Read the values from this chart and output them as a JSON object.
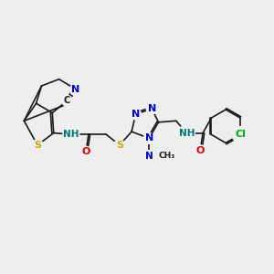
{
  "bg_color": "#eeeeee",
  "bond_color": "#1a1a1a",
  "bond_width": 1.2,
  "figsize": [
    3.0,
    3.0
  ],
  "dpi": 100,
  "atom_colors": {
    "N": "#0000cc",
    "S": "#ccaa00",
    "O": "#dd0000",
    "Cl": "#00aa00",
    "H": "#007777"
  },
  "xlim": [
    0,
    10
  ],
  "ylim": [
    1,
    8
  ]
}
